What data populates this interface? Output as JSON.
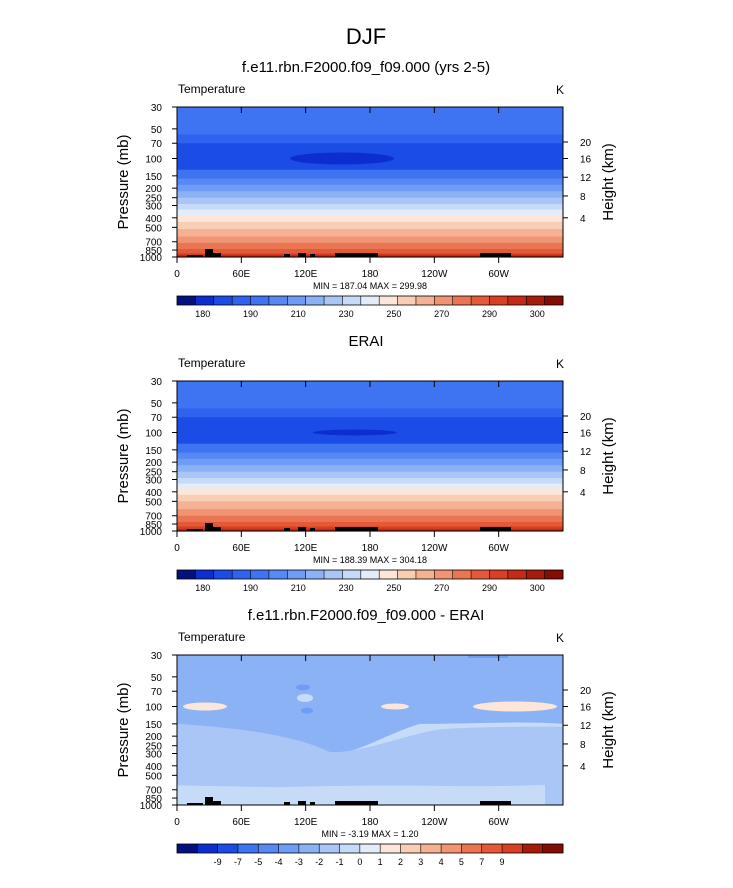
{
  "figure_title": "DJF",
  "colors": {
    "temp_scale": [
      "#05107e",
      "#0c2ed0",
      "#1b4de6",
      "#2f62ee",
      "#3e73f2",
      "#5888f3",
      "#6f9cf4",
      "#8cb2f6",
      "#a9c6f7",
      "#c6dbf7",
      "#e3ecf8",
      "#fbe6d9",
      "#f8ceb5",
      "#f4b293",
      "#f09474",
      "#ea7553",
      "#e45a39",
      "#d93f24",
      "#c42a15",
      "#a51c0b",
      "#820d02"
    ],
    "diff_scale": [
      "#05107e",
      "#0c2ed0",
      "#1b4de6",
      "#3e73f2",
      "#5888f3",
      "#6f9cf4",
      "#8cb2f6",
      "#a9c6f7",
      "#c6dbf7",
      "#e3ecf8",
      "#fbe6d9",
      "#f8ceb5",
      "#f4b293",
      "#f09474",
      "#ea7553",
      "#e45a39",
      "#d93f24",
      "#a51c0b",
      "#820d02"
    ],
    "terrain": "#000000"
  },
  "panels": [
    {
      "title": "f.e11.rbn.F2000.f09_f09.000 (yrs 2-5)",
      "left_label": "Temperature",
      "right_label": "K",
      "ylabel": "Pressure (mb)",
      "ylabel_right": "Height (km)",
      "minmax": "MIN = 187.04  MAX = 299.98",
      "colorbar_labels": [
        "180",
        "190",
        "210",
        "230",
        "250",
        "270",
        "290",
        "300"
      ],
      "kind": "model"
    },
    {
      "title": "ERAI",
      "left_label": "Temperature",
      "right_label": "K",
      "ylabel": "Pressure (mb)",
      "ylabel_right": "Height (km)",
      "minmax": "MIN = 188.39  MAX = 304.18",
      "colorbar_labels": [
        "180",
        "190",
        "210",
        "230",
        "250",
        "270",
        "290",
        "300"
      ],
      "kind": "obs"
    },
    {
      "title": "f.e11.rbn.F2000.f09_f09.000 - ERAI",
      "left_label": "Temperature",
      "right_label": "K",
      "ylabel": "Pressure (mb)",
      "ylabel_right": "Height (km)",
      "minmax": "MIN = -3.19  MAX =  1.20",
      "colorbar_labels": [
        "-9",
        "-7",
        "-5",
        "-4",
        "-3",
        "-2",
        "-1",
        "0",
        "1",
        "2",
        "3",
        "4",
        "5",
        "7",
        "9"
      ],
      "kind": "diff"
    }
  ],
  "chart_data": [
    {
      "type": "heatmap",
      "title": "f.e11.rbn.F2000.f09_f09.000 (yrs 2-5)",
      "ylabel": "Pressure (mb)",
      "y_right_label": "Height (km)",
      "x_ticks": [
        "0",
        "60E",
        "120E",
        "180",
        "120W",
        "60W"
      ],
      "y_ticks": [
        "30",
        "50",
        "70",
        "100",
        "150",
        "200",
        "250",
        "300",
        "400",
        "500",
        "700",
        "850",
        "1000"
      ],
      "y_right_ticks": [
        "20",
        "16",
        "12",
        "8",
        "4"
      ],
      "y_scale": "log",
      "units": "K",
      "min": 187.04,
      "max": 299.98,
      "colorbar_labels": [
        "180",
        "190",
        "210",
        "230",
        "250",
        "270",
        "290",
        "300"
      ]
    },
    {
      "type": "heatmap",
      "title": "ERAI",
      "ylabel": "Pressure (mb)",
      "y_right_label": "Height (km)",
      "x_ticks": [
        "0",
        "60E",
        "120E",
        "180",
        "120W",
        "60W"
      ],
      "y_ticks": [
        "30",
        "50",
        "70",
        "100",
        "150",
        "200",
        "250",
        "300",
        "400",
        "500",
        "700",
        "850",
        "1000"
      ],
      "y_right_ticks": [
        "20",
        "16",
        "12",
        "8",
        "4"
      ],
      "y_scale": "log",
      "units": "K",
      "min": 188.39,
      "max": 304.18,
      "colorbar_labels": [
        "180",
        "190",
        "210",
        "230",
        "250",
        "270",
        "290",
        "300"
      ]
    },
    {
      "type": "heatmap",
      "title": "f.e11.rbn.F2000.f09_f09.000 - ERAI",
      "ylabel": "Pressure (mb)",
      "y_right_label": "Height (km)",
      "x_ticks": [
        "0",
        "60E",
        "120E",
        "180",
        "120W",
        "60W"
      ],
      "y_ticks": [
        "30",
        "50",
        "70",
        "100",
        "150",
        "200",
        "250",
        "300",
        "400",
        "500",
        "700",
        "850",
        "1000"
      ],
      "y_right_ticks": [
        "20",
        "16",
        "12",
        "8",
        "4"
      ],
      "y_scale": "log",
      "units": "K",
      "min": -3.19,
      "max": 1.2,
      "colorbar_labels": [
        "-9",
        "-7",
        "-5",
        "-4",
        "-3",
        "-2",
        "-1",
        "0",
        "1",
        "2",
        "3",
        "4",
        "5",
        "7",
        "9"
      ]
    }
  ]
}
